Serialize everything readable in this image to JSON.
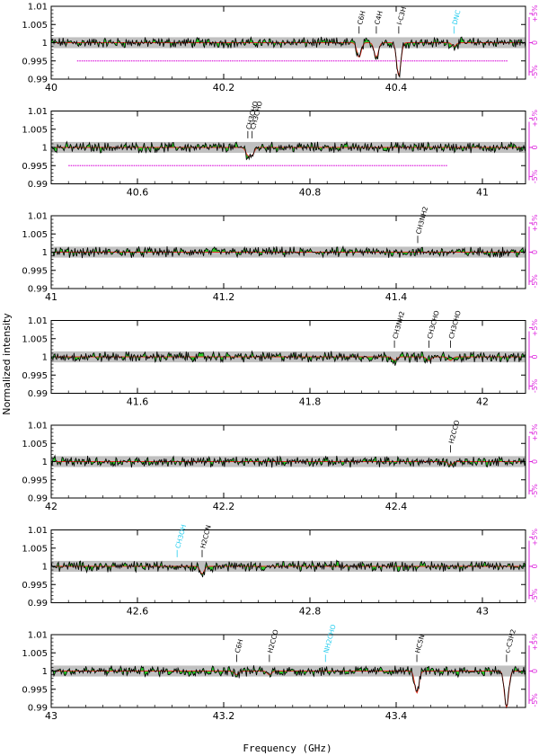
{
  "figure": {
    "ylabel": "Normalized intensity",
    "xlabel": "Frequency (GHz)"
  },
  "colors": {
    "spectrum": "#000000",
    "model": "#e03020",
    "fill": "#22cc22",
    "band": "#c0c0c0",
    "magenta": "#dd22dd",
    "cyan_label": "#22ccee",
    "black_label": "#000000"
  },
  "chart_data": [
    {
      "type": "line",
      "xlim": [
        40.0,
        40.55
      ],
      "ylim": [
        0.99,
        1.01
      ],
      "xticks": [
        "40",
        "40.2",
        "40.4"
      ],
      "xtick_values": [
        40.0,
        40.2,
        40.4
      ],
      "yticks": [
        "0.99",
        "0.995",
        "1",
        "1.005",
        "1.01"
      ],
      "right_ticks": [
        "-5%",
        "0",
        "+5%"
      ],
      "magenta_trace": [
        40.03,
        40.53
      ],
      "lines": [
        {
          "label": "C6H",
          "freq": 40.357,
          "depth": 0.004,
          "cyan": false
        },
        {
          "label": "C4H",
          "freq": 40.377,
          "depth": 0.004,
          "cyan": false
        },
        {
          "label": "l-C3H",
          "freq": 40.403,
          "depth": 0.009,
          "cyan": false
        },
        {
          "label": "DNC",
          "freq": 40.467,
          "depth": 0.001,
          "cyan": true
        }
      ]
    },
    {
      "type": "line",
      "xlim": [
        40.5,
        41.05
      ],
      "ylim": [
        0.99,
        1.01
      ],
      "xticks": [
        "40.6",
        "40.8",
        "41"
      ],
      "xtick_values": [
        40.6,
        40.8,
        41.0
      ],
      "yticks": [
        "0.99",
        "0.995",
        "1",
        "1.005",
        "1.01"
      ],
      "right_ticks": [
        "-5%",
        "0",
        "+5%"
      ],
      "magenta_trace": [
        40.52,
        40.96
      ],
      "lines": [
        {
          "label": "CH3CHO",
          "freq": 40.728,
          "depth": 0.002,
          "cyan": false
        },
        {
          "label": "CH3CHO",
          "freq": 40.733,
          "depth": 0.002,
          "cyan": false
        }
      ]
    },
    {
      "type": "line",
      "xlim": [
        41.0,
        41.55
      ],
      "ylim": [
        0.99,
        1.01
      ],
      "xticks": [
        "41",
        "41.2",
        "41.4"
      ],
      "xtick_values": [
        41.0,
        41.2,
        41.4
      ],
      "yticks": [
        "0.99",
        "0.995",
        "1",
        "1.005",
        "1.01"
      ],
      "right_ticks": [
        "-5%",
        "0",
        "+5%"
      ],
      "magenta_trace": null,
      "lines": [
        {
          "label": "CH3NH2",
          "freq": 41.425,
          "depth": 0.0,
          "cyan": false
        }
      ]
    },
    {
      "type": "line",
      "xlim": [
        41.5,
        42.05
      ],
      "ylim": [
        0.99,
        1.01
      ],
      "xticks": [
        "41.6",
        "41.8",
        "42"
      ],
      "xtick_values": [
        41.6,
        41.8,
        42.0
      ],
      "yticks": [
        "0.99",
        "0.995",
        "1",
        "1.005",
        "1.01"
      ],
      "right_ticks": [
        "-5%",
        "0",
        "+5%"
      ],
      "magenta_trace": null,
      "lines": [
        {
          "label": "CH3NH2",
          "freq": 41.898,
          "depth": 0.001,
          "cyan": false
        },
        {
          "label": "CH3CHO",
          "freq": 41.938,
          "depth": 0.001,
          "cyan": false
        },
        {
          "label": "CH3CHO",
          "freq": 41.963,
          "depth": 0.001,
          "cyan": false
        }
      ]
    },
    {
      "type": "line",
      "xlim": [
        42.0,
        42.55
      ],
      "ylim": [
        0.99,
        1.01
      ],
      "xticks": [
        "42",
        "42.2",
        "42.4"
      ],
      "xtick_values": [
        42.0,
        42.2,
        42.4
      ],
      "yticks": [
        "0.99",
        "0.995",
        "1",
        "1.005",
        "1.01"
      ],
      "right_ticks": [
        "-5%",
        "0",
        "+5%"
      ],
      "magenta_trace": null,
      "lines": [
        {
          "label": "H2CCO",
          "freq": 42.463,
          "depth": 0.001,
          "cyan": false
        }
      ]
    },
    {
      "type": "line",
      "xlim": [
        42.5,
        43.05
      ],
      "ylim": [
        0.99,
        1.01
      ],
      "xticks": [
        "42.6",
        "42.8",
        "43"
      ],
      "xtick_values": [
        42.6,
        42.8,
        43.0
      ],
      "yticks": [
        "0.99",
        "0.995",
        "1",
        "1.005",
        "1.01"
      ],
      "right_ticks": [
        "-5%",
        "0",
        "+5%"
      ],
      "magenta_trace": null,
      "lines": [
        {
          "label": "CH3OH",
          "freq": 42.646,
          "depth": 0.0,
          "cyan": true
        },
        {
          "label": "H2CCN",
          "freq": 42.675,
          "depth": 0.002,
          "cyan": false
        }
      ]
    },
    {
      "type": "line",
      "xlim": [
        43.0,
        43.55
      ],
      "ylim": [
        0.99,
        1.01
      ],
      "xticks": [
        "43",
        "43.2",
        "43.4"
      ],
      "xtick_values": [
        43.0,
        43.2,
        43.4
      ],
      "yticks": [
        "0.99",
        "0.995",
        "1",
        "1.005",
        "1.01"
      ],
      "right_ticks": [
        "-5%",
        "0",
        "+5%"
      ],
      "magenta_trace": null,
      "lines": [
        {
          "label": "C6H",
          "freq": 43.215,
          "depth": 0.001,
          "cyan": false
        },
        {
          "label": "H2CCO",
          "freq": 43.253,
          "depth": 0.001,
          "cyan": false
        },
        {
          "label": "NH2CHO",
          "freq": 43.318,
          "depth": 0.0,
          "cyan": true
        },
        {
          "label": "HC5N",
          "freq": 43.424,
          "depth": 0.006,
          "cyan": false
        },
        {
          "label": "c-C3H2",
          "freq": 43.528,
          "depth": 0.01,
          "cyan": false
        }
      ]
    }
  ]
}
